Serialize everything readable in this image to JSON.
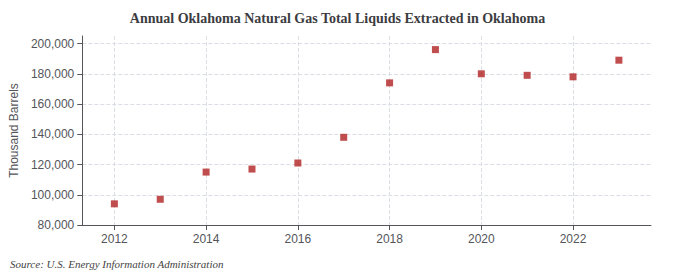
{
  "chart_data": {
    "type": "scatter",
    "title": "Annual Oklahoma Natural Gas Total Liquids Extracted in Oklahoma",
    "ylabel": "Thousand Barrels",
    "source": "Source: U.S. Energy Information Administration",
    "x": [
      2012,
      2013,
      2014,
      2015,
      2016,
      2017,
      2018,
      2019,
      2020,
      2021,
      2022,
      2023
    ],
    "values": [
      94000,
      97000,
      115000,
      117000,
      121000,
      138000,
      174000,
      196000,
      180000,
      179000,
      178000,
      189000
    ],
    "color": "#b22222",
    "marker": "square",
    "xlim": [
      2011.3,
      2023.7
    ],
    "xticks": [
      2012,
      2014,
      2016,
      2018,
      2020,
      2022
    ],
    "ylim": [
      80000,
      205000
    ],
    "yticks": [
      {
        "value": 80000,
        "label": "80,000"
      },
      {
        "value": 100000,
        "label": "100,000"
      },
      {
        "value": 120000,
        "label": "120,000"
      },
      {
        "value": 140000,
        "label": "140,000"
      },
      {
        "value": 160000,
        "label": "160,000"
      },
      {
        "value": 180000,
        "label": "180,000"
      },
      {
        "value": 200000,
        "label": "200,000"
      }
    ],
    "grid": true
  }
}
